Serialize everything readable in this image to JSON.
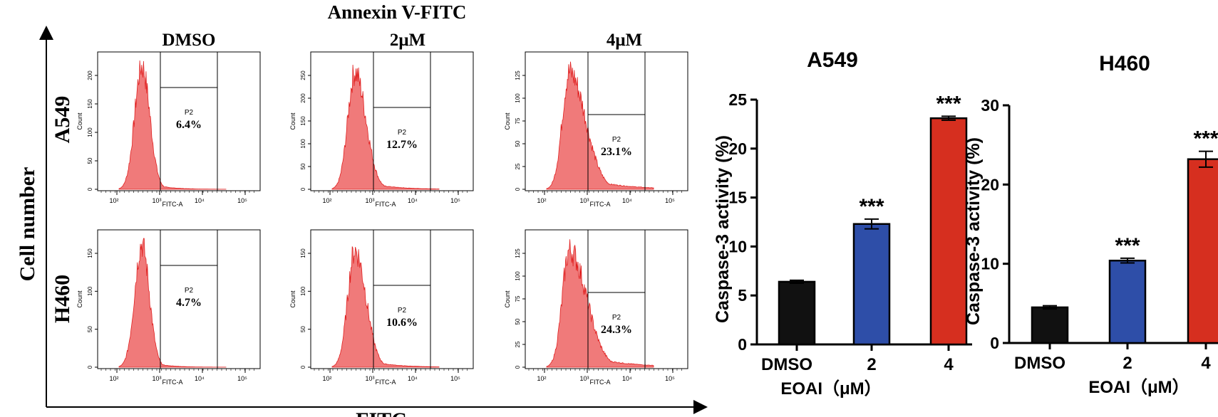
{
  "flow": {
    "title": "Annexin V-FITC",
    "y_label": "Cell number",
    "x_label": "FITC",
    "columns": [
      "DMSO",
      "2μM",
      "4μM"
    ],
    "rows": [
      "A549",
      "H460"
    ],
    "axis_x_label": "FITC-A",
    "axis_y_label": "Count",
    "gate_label": "P2",
    "x_ticks": [
      "10²",
      "10³",
      "10⁴",
      "10⁵"
    ],
    "hist_color": "#f07a7a",
    "hist_stroke": "#e02020",
    "panels": [
      {
        "row": "A549",
        "col": "DMSO",
        "percent": "6.4%",
        "y_ticks": [
          "0",
          "50",
          "100",
          "150",
          "200"
        ],
        "peak": 1.0,
        "spread": 0.8
      },
      {
        "row": "A549",
        "col": "2μM",
        "percent": "12.7%",
        "y_ticks": [
          "0",
          "50",
          "100",
          "150",
          "200",
          "250"
        ],
        "peak": 0.95,
        "spread": 1.1
      },
      {
        "row": "A549",
        "col": "4μM",
        "percent": "23.1%",
        "y_ticks": [
          "0",
          "25",
          "50",
          "75",
          "100",
          "125"
        ],
        "peak": 0.95,
        "spread": 1.6
      },
      {
        "row": "H460",
        "col": "DMSO",
        "percent": "4.7%",
        "y_ticks": [
          "0",
          "50",
          "100",
          "150"
        ],
        "peak": 1.0,
        "spread": 0.75
      },
      {
        "row": "H460",
        "col": "2μM",
        "percent": "10.6%",
        "y_ticks": [
          "0",
          "50",
          "100",
          "150"
        ],
        "peak": 0.95,
        "spread": 1.1
      },
      {
        "row": "H460",
        "col": "4μM",
        "percent": "24.3%",
        "y_ticks": [
          "0",
          "25",
          "50",
          "75",
          "100",
          "125"
        ],
        "peak": 0.95,
        "spread": 1.7
      }
    ]
  },
  "chart_data": [
    {
      "type": "bar",
      "title": "A549",
      "categories": [
        "DMSO",
        "2",
        "4"
      ],
      "values": [
        6.4,
        12.3,
        23.1
      ],
      "errors": [
        0.15,
        0.5,
        0.2
      ],
      "significance": [
        "",
        "***",
        "***"
      ],
      "colors": [
        "#111111",
        "#2e4ea8",
        "#d62f1f"
      ],
      "ylabel": "Caspase-3 activity (%)",
      "xlabel": "EOAI（μM）",
      "ylim": [
        0,
        25
      ],
      "yticks": [
        0,
        5,
        10,
        15,
        20,
        25
      ]
    },
    {
      "type": "bar",
      "title": "H460",
      "categories": [
        "DMSO",
        "2",
        "4"
      ],
      "values": [
        4.5,
        10.4,
        23.2
      ],
      "errors": [
        0.2,
        0.3,
        1.0
      ],
      "significance": [
        "",
        "***",
        "***"
      ],
      "colors": [
        "#111111",
        "#2e4ea8",
        "#d62f1f"
      ],
      "ylabel": "Caspase-3 activity (%)",
      "xlabel": "EOAI（μM）",
      "ylim": [
        0,
        30
      ],
      "yticks": [
        0,
        10,
        20,
        30
      ]
    }
  ]
}
